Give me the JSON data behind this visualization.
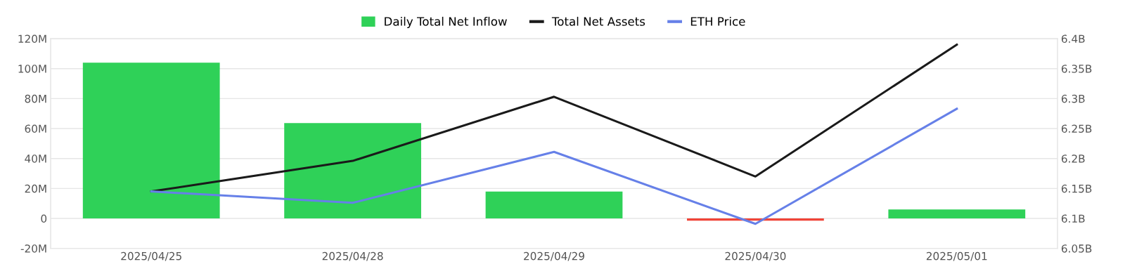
{
  "chart_data": {
    "type": "bar",
    "categories": [
      "2025/04/25",
      "2025/04/28",
      "2025/04/29",
      "2025/04/30",
      "2025/05/01"
    ],
    "series": [
      {
        "name": "Daily Total Net Inflow",
        "colors": [
          "#2fd158",
          "#2fd158",
          "#2fd158",
          "#f04438",
          "#2fd158"
        ],
        "values": [
          104,
          63.7,
          17.9,
          -1.5,
          6
        ]
      },
      {
        "name": "Total Net Assets",
        "type": "line",
        "axis": "y2",
        "color": "#1a1a1a",
        "values": [
          6.145,
          6.196,
          6.303,
          6.17,
          6.39
        ]
      },
      {
        "name": "ETH Price",
        "type": "line",
        "axis": "y2",
        "color": "#6680e8",
        "values": [
          6.145,
          6.126,
          6.211,
          6.091,
          6.283
        ]
      }
    ],
    "ylim": [
      -20,
      120
    ],
    "yticks": [
      {
        "value": -20,
        "label": "-20M"
      },
      {
        "value": 0,
        "label": "0"
      },
      {
        "value": 20,
        "label": "20M"
      },
      {
        "value": 40,
        "label": "40M"
      },
      {
        "value": 60,
        "label": "60M"
      },
      {
        "value": 80,
        "label": "80M"
      },
      {
        "value": 100,
        "label": "100M"
      },
      {
        "value": 120,
        "label": "120M"
      }
    ],
    "y2lim": [
      6.05,
      6.4
    ],
    "y2ticks": [
      {
        "value": 6.05,
        "label": "6.05B"
      },
      {
        "value": 6.1,
        "label": "6.1B"
      },
      {
        "value": 6.15,
        "label": "6.15B"
      },
      {
        "value": 6.2,
        "label": "6.2B"
      },
      {
        "value": 6.25,
        "label": "6.25B"
      },
      {
        "value": 6.3,
        "label": "6.3B"
      },
      {
        "value": 6.35,
        "label": "6.35B"
      },
      {
        "value": 6.4,
        "label": "6.4B"
      }
    ],
    "grid": "y",
    "legend": "top",
    "marker": "none",
    "line_style": "solid"
  }
}
